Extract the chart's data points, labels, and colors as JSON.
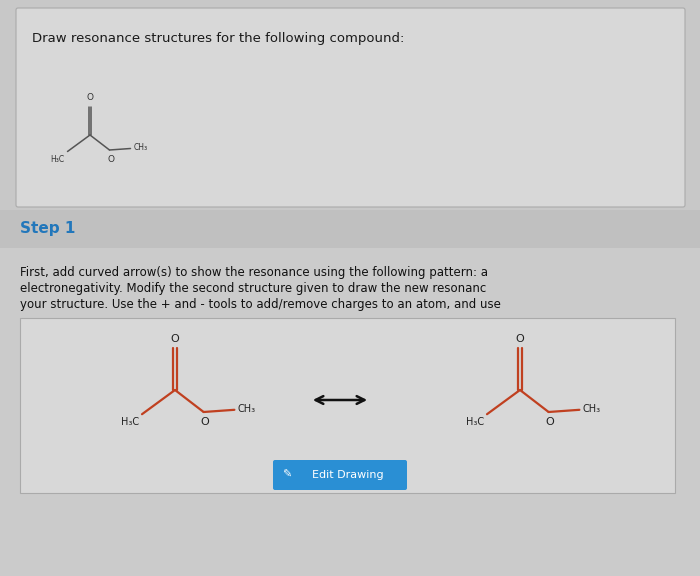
{
  "bg_color": "#c8c8c8",
  "panel1_bg": "#d8d8d8",
  "step_header_bg": "#c0c0c0",
  "body_bg": "#cbcbcb",
  "draw_box_bg": "#d8d8d8",
  "title_text": "Draw resonance structures for the following compound:",
  "title_color": "#1a1a1a",
  "title_fontsize": 9.5,
  "step1_text": "Step 1",
  "step1_color": "#2277bb",
  "step1_fontsize": 11,
  "body_lines": [
    "First, add curved arrow(s) to show the resonance using the following pattern: a",
    "electronegativity. Modify the second structure given to draw the new resonanc",
    "your structure. Use the + and - tools to add/remove charges to an atom, and use"
  ],
  "body_fontsize": 8.5,
  "body_color": "#111111",
  "bond_color_small": "#555555",
  "bond_color_large": "#c04020",
  "label_color_small": "#333333",
  "label_color_large": "#222222",
  "arrow_color": "#111111",
  "button_color": "#2a8fd4",
  "button_text": "Edit Drawing",
  "button_text_color": "#ffffff",
  "button_fontsize": 8
}
